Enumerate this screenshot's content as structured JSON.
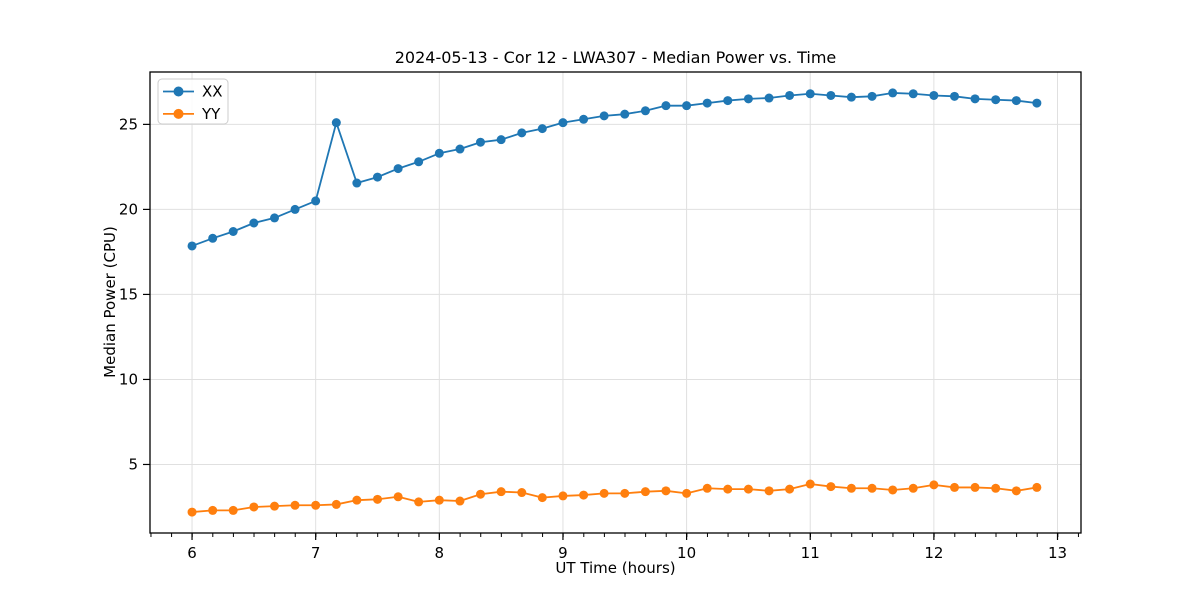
{
  "chart_data": {
    "type": "line",
    "title": "2024-05-13 - Cor 12 - LWA307 - Median Power vs. Time",
    "xlabel": "UT Time (hours)",
    "ylabel": "Median Power (CPU)",
    "xlim": [
      5.66,
      13.19
    ],
    "ylim": [
      0.97,
      28.08
    ],
    "xticks": [
      6,
      7,
      8,
      9,
      10,
      11,
      12,
      13
    ],
    "yticks": [
      5,
      10,
      15,
      20,
      25
    ],
    "x_minor_step": 0.1667,
    "grid": true,
    "legend_position": "upper left",
    "colors": {
      "grid": "#e0e0e0",
      "spine": "#000000",
      "legend_border": "#cccccc",
      "legend_bg": "rgba(255,255,255,0.85)"
    },
    "x": [
      6.0,
      6.167,
      6.333,
      6.5,
      6.667,
      6.833,
      7.0,
      7.167,
      7.333,
      7.5,
      7.667,
      7.833,
      8.0,
      8.167,
      8.333,
      8.5,
      8.667,
      8.833,
      9.0,
      9.167,
      9.333,
      9.5,
      9.667,
      9.833,
      10.0,
      10.167,
      10.333,
      10.5,
      10.667,
      10.833,
      11.0,
      11.167,
      11.333,
      11.5,
      11.667,
      11.833,
      12.0,
      12.167,
      12.333,
      12.5,
      12.667,
      12.833
    ],
    "series": [
      {
        "name": "XX",
        "color": "#1f77b4",
        "values": [
          17.85,
          18.3,
          18.7,
          19.2,
          19.5,
          20.0,
          20.5,
          25.1,
          21.55,
          21.9,
          22.4,
          22.8,
          23.3,
          23.55,
          23.95,
          24.1,
          24.5,
          24.75,
          25.1,
          25.3,
          25.5,
          25.6,
          25.8,
          26.1,
          26.1,
          26.25,
          26.4,
          26.5,
          26.55,
          26.7,
          26.8,
          26.7,
          26.6,
          26.65,
          26.85,
          26.8,
          26.7,
          26.65,
          26.5,
          26.45,
          26.4,
          26.25
        ]
      },
      {
        "name": "YY",
        "color": "#ff7f0e",
        "values": [
          2.2,
          2.3,
          2.3,
          2.5,
          2.55,
          2.6,
          2.6,
          2.65,
          2.9,
          2.95,
          3.1,
          2.8,
          2.9,
          2.85,
          3.25,
          3.4,
          3.35,
          3.05,
          3.15,
          3.2,
          3.3,
          3.3,
          3.4,
          3.45,
          3.3,
          3.6,
          3.55,
          3.55,
          3.45,
          3.55,
          3.85,
          3.7,
          3.6,
          3.6,
          3.5,
          3.6,
          3.8,
          3.65,
          3.65,
          3.6,
          3.45,
          3.65
        ]
      }
    ]
  }
}
